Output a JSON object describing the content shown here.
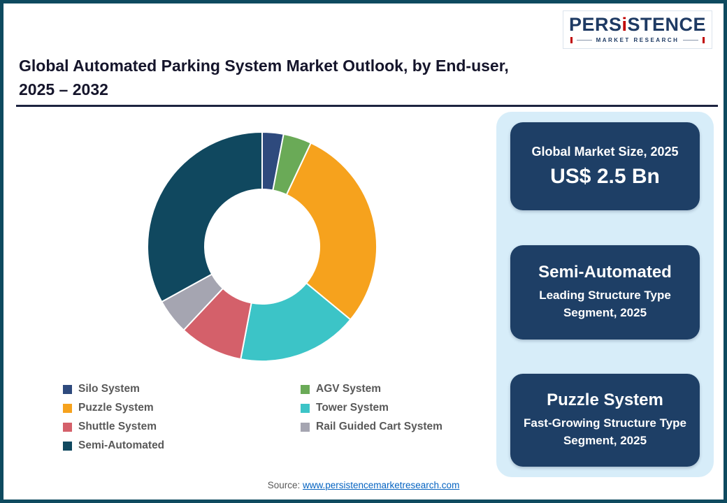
{
  "header": {
    "title_line1": "Global Automated Parking System Market Outlook, by End-user,",
    "title_line2": "2025 – 2032",
    "logo": {
      "brand_part1": "PERS",
      "brand_accent": "i",
      "brand_part2": "STENCE",
      "subtitle": "MARKET RESEARCH",
      "brand_color": "#1e3a63",
      "accent_color": "#c00000"
    }
  },
  "chart_data": {
    "type": "pie",
    "donut": true,
    "title": "Global Automated Parking System Market Outlook, by End-user, 2025 – 2032",
    "legend_position": "bottom-left",
    "units": "% share (estimated from segment arcs)",
    "series": [
      {
        "name": "Silo System",
        "value": 3,
        "color": "#2e4a7d"
      },
      {
        "name": "AGV System",
        "value": 4,
        "color": "#6aaa57"
      },
      {
        "name": "Puzzle System",
        "value": 29,
        "color": "#f6a21d"
      },
      {
        "name": "Tower System",
        "value": 17,
        "color": "#3cc4c7"
      },
      {
        "name": "Shuttle System",
        "value": 9,
        "color": "#d4606a"
      },
      {
        "name": "Rail Guided Cart System",
        "value": 5,
        "color": "#a5a5b1"
      },
      {
        "name": "Semi-Automated",
        "value": 33,
        "color": "#10485f"
      }
    ]
  },
  "side_panel": {
    "bg_color": "#d7edf9",
    "card_color": "#1e3f66",
    "cards": [
      {
        "line1": "Global Market Size, 2025",
        "line2": "US$ 2.5 Bn"
      },
      {
        "line1": "Semi-Automated",
        "line2": "Leading Structure Type Segment, 2025"
      },
      {
        "line1": "Puzzle System",
        "line2": "Fast-Growing Structure Type Segment, 2025"
      }
    ]
  },
  "footer": {
    "source_label": "Source:",
    "source_link": "www.persistencemarketresearch.com"
  }
}
